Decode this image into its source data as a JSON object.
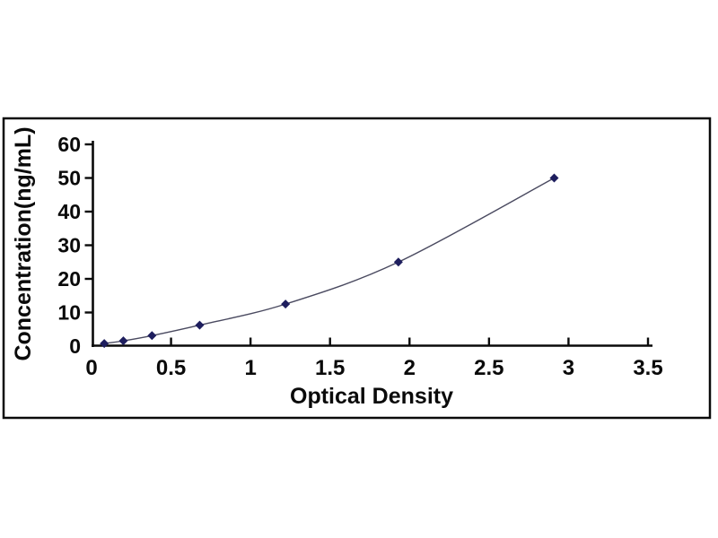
{
  "figure": {
    "background_color": "#ffffff",
    "frame_border_color": "#0a0a0a"
  },
  "chart_data": {
    "type": "line",
    "title": "",
    "xlabel": "Optical Density",
    "ylabel": "Concentration(ng/mL)",
    "x": [
      0.08,
      0.2,
      0.38,
      0.68,
      1.22,
      1.93,
      2.91
    ],
    "y": [
      0.78,
      1.56,
      3.12,
      6.25,
      12.5,
      25,
      50
    ],
    "xlim": [
      0,
      3.5
    ],
    "ylim": [
      0,
      60
    ],
    "xticks": [
      0,
      0.5,
      1,
      1.5,
      2,
      2.5,
      3,
      3.5
    ],
    "xtick_labels": [
      "0",
      "0.5",
      "1",
      "1.5",
      "2",
      "2.5",
      "3",
      "3.5"
    ],
    "yticks": [
      0,
      10,
      20,
      30,
      40,
      50,
      60
    ],
    "ytick_labels": [
      "0",
      "10",
      "20",
      "30",
      "40",
      "50",
      "60"
    ],
    "grid": false,
    "legend": null,
    "marker_shape": "diamond",
    "marker_color": "#1e1e5e",
    "line_color": "#4a4a60",
    "axis_color": "#0a0a0a"
  }
}
